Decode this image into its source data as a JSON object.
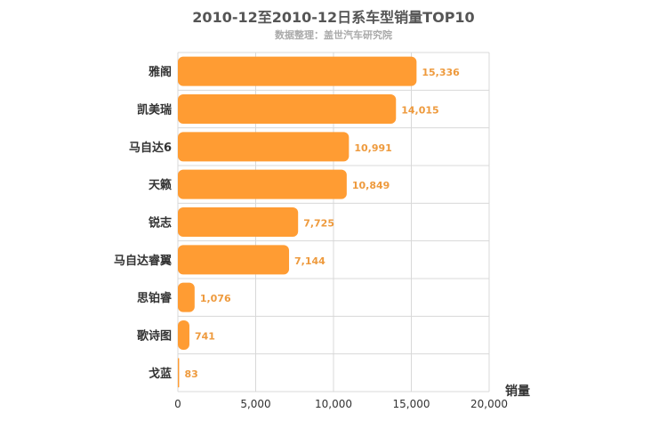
{
  "chart_data": {
    "type": "bar",
    "orientation": "horizontal",
    "title": "2010-12至2010-12日系车型销量TOP10",
    "subtitle": "数据整理：盖世汽车研究院",
    "xlabel": "销量",
    "ylabel": "",
    "categories": [
      "雅阁",
      "凯美瑞",
      "马自达6",
      "天籁",
      "锐志",
      "马自达睿翼",
      "思铂睿",
      "歌诗图",
      "戈蓝"
    ],
    "values": [
      15336,
      14015,
      10991,
      10849,
      7725,
      7144,
      1076,
      741,
      83
    ],
    "value_labels": [
      "15,336",
      "14,015",
      "10,991",
      "10,849",
      "7,725",
      "7,144",
      "1,076",
      "741",
      "83"
    ],
    "xlim": [
      0,
      20000
    ],
    "ticks": [
      0,
      5000,
      10000,
      15000,
      20000
    ],
    "tick_labels": [
      "0",
      "5,000",
      "10,000",
      "15,000",
      "20,000"
    ],
    "grid": true,
    "legend": "none",
    "colors": {
      "bar": "#ff9c33",
      "value_label": "#ee9a3d",
      "grid": "#d8d8d8",
      "axis_text": "#333333"
    }
  }
}
